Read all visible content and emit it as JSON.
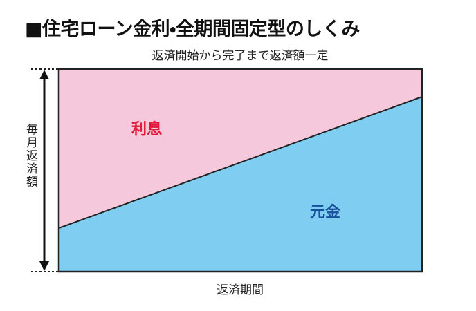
{
  "header": {
    "title": "■住宅ローン金利・全期間固定型のしくみ"
  },
  "diagram": {
    "caption": "返済開始から完了まで返済額一定",
    "areas": {
      "interest": "利息",
      "principal": "元金"
    },
    "y_label": "毎月返済額",
    "x_label": "返済期間"
  }
}
